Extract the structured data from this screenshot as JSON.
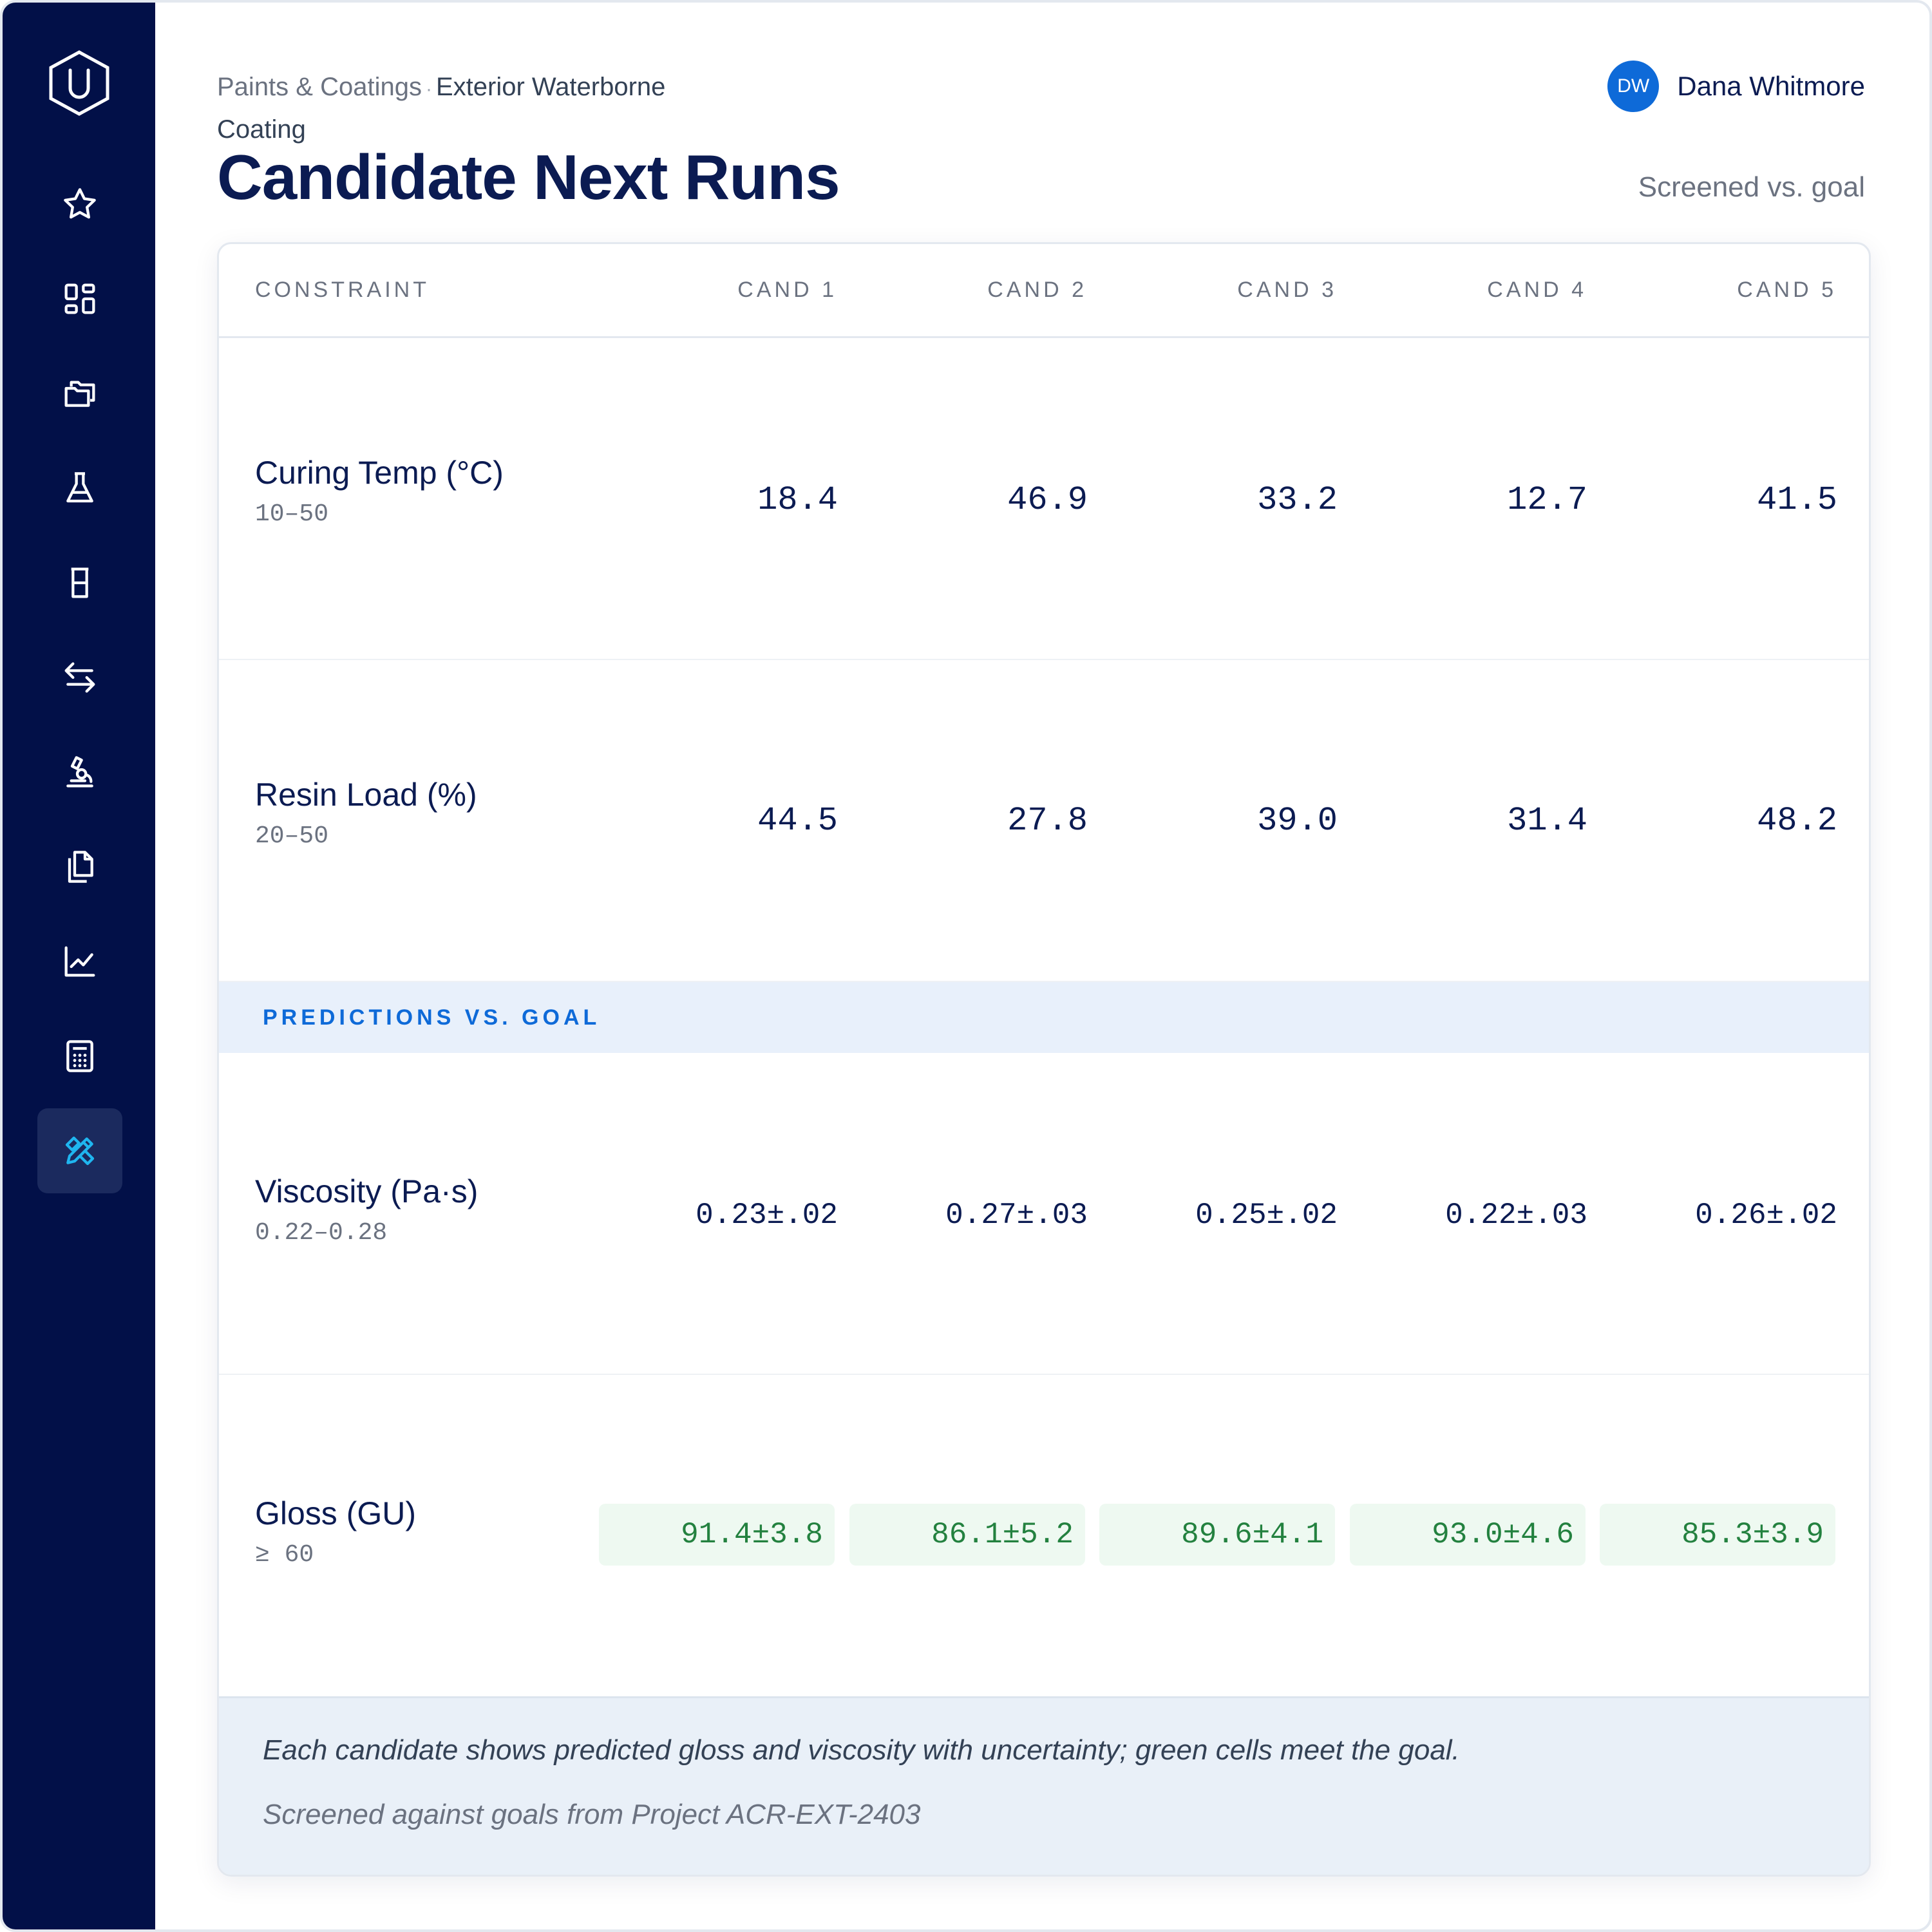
{
  "sidebar": {
    "logo": "u-hexagon-logo",
    "items": [
      {
        "icon": "star-icon",
        "active": false
      },
      {
        "icon": "dashboard-icon",
        "active": false
      },
      {
        "icon": "folders-icon",
        "active": false
      },
      {
        "icon": "flask-icon",
        "active": false
      },
      {
        "icon": "beaker-icon",
        "active": false
      },
      {
        "icon": "swap-arrows-icon",
        "active": false
      },
      {
        "icon": "microscope-icon",
        "active": false
      },
      {
        "icon": "copy-document-icon",
        "active": false
      },
      {
        "icon": "line-chart-icon",
        "active": false
      },
      {
        "icon": "calculator-icon",
        "active": false
      },
      {
        "icon": "design-tools-icon",
        "active": true
      }
    ],
    "active_color": "#1fb6f0"
  },
  "breadcrumb": {
    "parent": "Paints & Coatings",
    "separator": "·",
    "current": "Exterior Waterborne Coating"
  },
  "page_title": "Candidate Next Runs",
  "subtitle": "Screened vs. goal",
  "user": {
    "initials": "DW",
    "name": "Dana Whitmore"
  },
  "table": {
    "header": {
      "constraint": "CONSTRAINT",
      "candidates": [
        "CAND 1",
        "CAND 2",
        "CAND 3",
        "CAND 4",
        "CAND 5"
      ]
    },
    "constraints": [
      {
        "name": "Curing Temp (°C)",
        "range": "10–50",
        "values": [
          "18.4",
          "46.9",
          "33.2",
          "12.7",
          "41.5"
        ]
      },
      {
        "name": "Resin Load (%)",
        "range": "20–50",
        "values": [
          "44.5",
          "27.8",
          "39.0",
          "31.4",
          "48.2"
        ]
      }
    ],
    "section_label": "PREDICTIONS VS. GOAL",
    "predictions": [
      {
        "name": "Viscosity (Pa·s)",
        "range": "0.22–0.28",
        "values": [
          "0.23±.02",
          "0.27±.03",
          "0.25±.02",
          "0.22±.03",
          "0.26±.02"
        ],
        "meets_goal_highlight": false
      },
      {
        "name": "Gloss (GU)",
        "range": "≥ 60",
        "values": [
          "91.4±3.8",
          "86.1±5.2",
          "89.6±4.1",
          "93.0±4.6",
          "85.3±3.9"
        ],
        "meets_goal_highlight": true
      }
    ]
  },
  "footer": {
    "note": "Each candidate shows predicted gloss and viscosity with uncertainty; green cells meet the goal.",
    "source": "Screened against goals from Project ACR-EXT-2403"
  },
  "colors": {
    "sidebar_bg": "#021048",
    "accent": "#0e6ad8",
    "good_bg": "#eef9f1",
    "good_text": "#23813f"
  }
}
